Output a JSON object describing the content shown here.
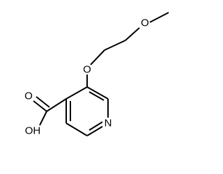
{
  "atoms": [
    {
      "label": "O"
    },
    {
      "label": "O"
    },
    {
      "label": "O"
    },
    {
      "label": "OH"
    },
    {
      "label": "N"
    }
  ]
}
